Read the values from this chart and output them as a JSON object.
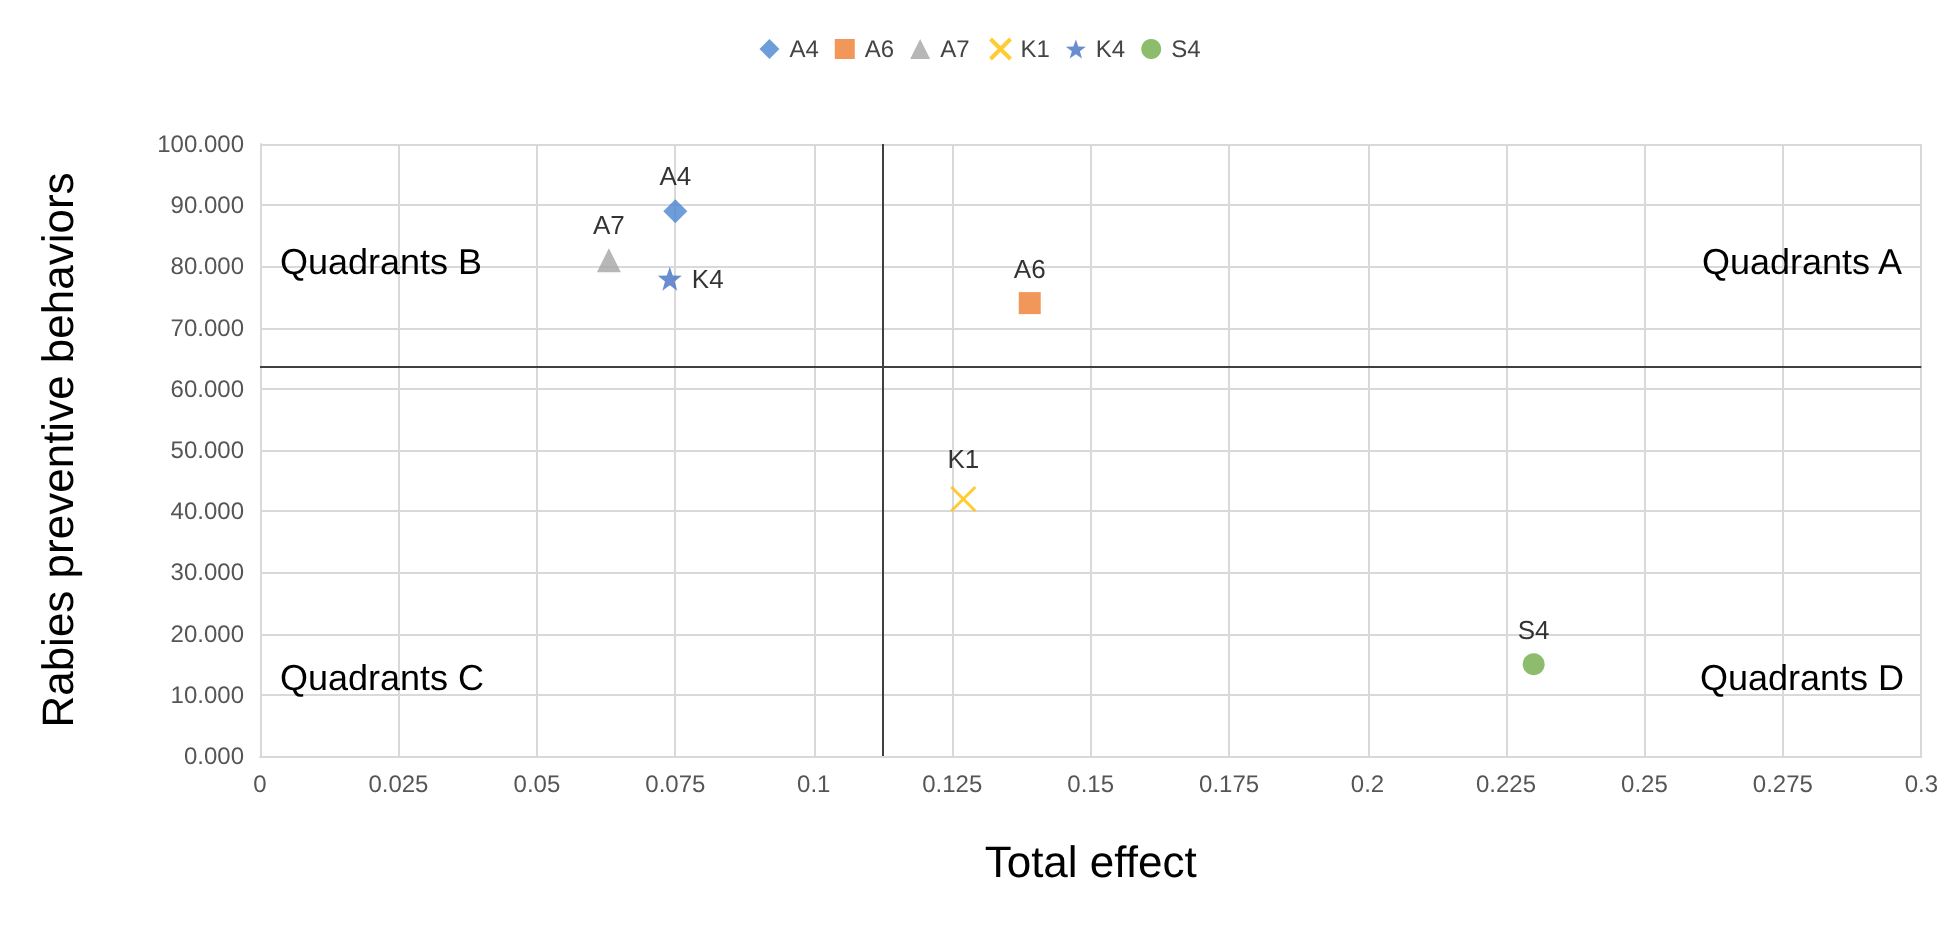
{
  "chart_data": {
    "type": "scatter",
    "xlabel": "Total effect",
    "ylabel": "Rabies preventive behaviors",
    "xlim": [
      0,
      0.3
    ],
    "xticks": [
      0,
      0.025,
      0.05,
      0.075,
      0.1,
      0.125,
      0.15,
      0.175,
      0.2,
      0.225,
      0.25,
      0.275,
      0.3
    ],
    "ylim": [
      0,
      100
    ],
    "yticks": [
      {
        "value": 0,
        "label": "0.000"
      },
      {
        "value": 10,
        "label": "10.000"
      },
      {
        "value": 20,
        "label": "20.000"
      },
      {
        "value": 30,
        "label": "30.000"
      },
      {
        "value": 40,
        "label": "40.000"
      },
      {
        "value": 50,
        "label": "50.000"
      },
      {
        "value": 60,
        "label": "60.000"
      },
      {
        "value": 70,
        "label": "70.000"
      },
      {
        "value": 80,
        "label": "80.000"
      },
      {
        "value": 90,
        "label": "90.000"
      },
      {
        "value": 100,
        "label": "100.000"
      }
    ],
    "grid": true,
    "legend": "top",
    "series": [
      {
        "name": "A4",
        "color": "#4a86d0",
        "marker": "diamond",
        "x": [
          0.075
        ],
        "values": [
          89
        ]
      },
      {
        "name": "A6",
        "color": "#ed7d31",
        "marker": "square",
        "x": [
          0.139
        ],
        "values": [
          74
        ]
      },
      {
        "name": "A7",
        "color": "#a5a5a5",
        "marker": "triangle",
        "x": [
          0.063
        ],
        "values": [
          81
        ]
      },
      {
        "name": "K1",
        "color": "#ffc000",
        "marker": "cross",
        "x": [
          0.127
        ],
        "values": [
          42
        ]
      },
      {
        "name": "K4",
        "color": "#4472c4",
        "marker": "star",
        "x": [
          0.074
        ],
        "values": [
          78
        ]
      },
      {
        "name": "S4",
        "color": "#70ad47",
        "marker": "circle",
        "x": [
          0.23
        ],
        "values": [
          15
        ]
      }
    ],
    "ref_lines": [
      {
        "axis": "x",
        "value": 0.1125,
        "color": "#404040"
      },
      {
        "axis": "y",
        "value": 63.5,
        "color": "#404040"
      }
    ],
    "annotations": [
      "Quadrants B",
      "Quadrants A",
      "Quadrants C",
      "Quadrants D"
    ]
  }
}
